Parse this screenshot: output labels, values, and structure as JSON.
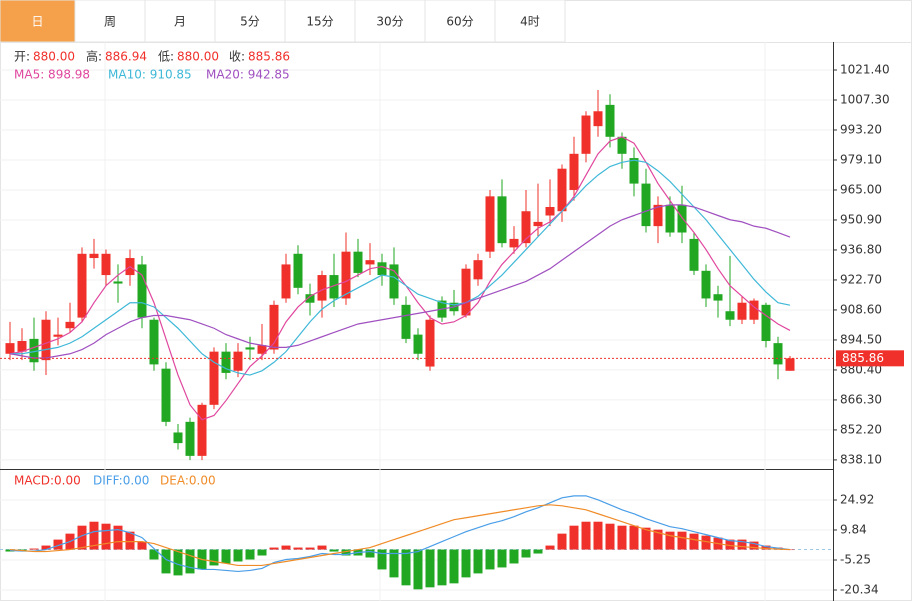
{
  "tabs": [
    "日",
    "周",
    "月",
    "5分",
    "15分",
    "30分",
    "60分",
    "4时"
  ],
  "active_tab": 0,
  "chart_data": [
    {
      "type": "candlestick",
      "header": [
        {
          "label": "开:",
          "text": "880.00"
        },
        {
          "label": "高:",
          "text": "886.94"
        },
        {
          "label": "低:",
          "text": "880.00"
        },
        {
          "label": "收:",
          "text": "885.86"
        }
      ],
      "up_color": "#f0302a",
      "down_color": "#22a722",
      "open": [
        888,
        889,
        895,
        885,
        896,
        900,
        905,
        933,
        925,
        922,
        925,
        930,
        904,
        881,
        851,
        856,
        840,
        864,
        889,
        880,
        891,
        888,
        890,
        914,
        935,
        916,
        913,
        925,
        914,
        936,
        930,
        931,
        930,
        911,
        897,
        882,
        913,
        912,
        906,
        923,
        936,
        962,
        938,
        940,
        948,
        953,
        955,
        965,
        982,
        995,
        1005,
        990,
        980,
        968,
        948,
        958,
        958,
        942,
        927,
        916,
        908,
        904,
        904,
        911,
        893,
        880
      ],
      "high": [
        903,
        900,
        905,
        908,
        905,
        912,
        938,
        942,
        937,
        930,
        937,
        934,
        905,
        884,
        855,
        858,
        865,
        891,
        893,
        893,
        896,
        902,
        913,
        935,
        939,
        921,
        927,
        935,
        945,
        942,
        940,
        935,
        938,
        915,
        900,
        906,
        915,
        918,
        930,
        935,
        965,
        970,
        948,
        965,
        968,
        970,
        977,
        990,
        1002,
        1012,
        1010,
        992,
        985,
        975,
        962,
        962,
        967,
        945,
        930,
        920,
        934,
        915,
        914,
        912,
        896,
        886.94
      ],
      "low": [
        885,
        885,
        880,
        878,
        892,
        898,
        903,
        928,
        920,
        912,
        920,
        900,
        880,
        854,
        843,
        838,
        838,
        862,
        876,
        877,
        885,
        885,
        888,
        912,
        916,
        906,
        905,
        910,
        911,
        924,
        925,
        920,
        911,
        893,
        885,
        880,
        903,
        906,
        905,
        920,
        933,
        938,
        935,
        938,
        943,
        948,
        950,
        960,
        978,
        990,
        985,
        975,
        962,
        945,
        940,
        943,
        940,
        925,
        910,
        905,
        901,
        902,
        902,
        891,
        876,
        880
      ],
      "close": [
        893,
        894,
        884,
        904,
        897,
        903,
        935,
        935,
        935,
        921,
        933,
        905,
        883,
        856,
        846,
        840,
        864,
        889,
        879,
        889,
        890,
        892,
        911,
        930,
        919,
        912,
        925,
        914,
        936,
        926,
        932,
        925,
        914,
        895,
        888,
        904,
        905,
        908,
        928,
        932,
        962,
        940,
        942,
        955,
        950,
        957,
        975,
        982,
        1000,
        1002,
        990,
        982,
        968,
        948,
        958,
        945,
        945,
        927,
        914,
        913,
        904,
        912,
        913,
        894,
        883,
        885.86
      ],
      "ma": [
        {
          "label": "MA5: 898.98",
          "color": "#e0479e",
          "values": [
            888,
            889,
            891,
            893,
            895,
            898,
            903,
            912,
            920,
            925,
            929,
            925,
            912,
            895,
            878,
            864,
            857,
            859,
            866,
            874,
            882,
            887,
            893,
            903,
            910,
            915,
            918,
            920,
            922,
            925,
            928,
            929,
            927,
            920,
            912,
            905,
            902,
            903,
            906,
            912,
            922,
            930,
            936,
            942,
            947,
            950,
            955,
            962,
            972,
            982,
            988,
            990,
            987,
            978,
            968,
            960,
            952,
            945,
            937,
            928,
            920,
            915,
            910,
            906,
            902,
            898.98
          ]
        },
        {
          "label": "MA10: 910.85",
          "color": "#3fb8d8",
          "values": [
            888,
            888,
            889,
            890,
            891,
            893,
            896,
            900,
            904,
            908,
            912,
            912,
            910,
            905,
            900,
            894,
            888,
            884,
            881,
            879,
            878,
            880,
            884,
            889,
            896,
            903,
            909,
            913,
            916,
            919,
            922,
            925,
            924,
            920,
            916,
            914,
            912,
            911,
            912,
            915,
            920,
            925,
            931,
            937,
            943,
            949,
            955,
            961,
            967,
            972,
            976,
            978,
            979,
            978,
            974,
            969,
            963,
            957,
            951,
            944,
            937,
            930,
            923,
            917,
            912,
            910.85
          ]
        },
        {
          "label": "MA20: 942.85",
          "color": "#a050c0",
          "values": [
            888,
            887,
            886,
            886,
            887,
            888,
            890,
            893,
            897,
            900,
            903,
            905,
            906,
            906,
            905,
            904,
            902,
            900,
            897,
            895,
            893,
            892,
            891,
            891,
            892,
            894,
            896,
            898,
            900,
            902,
            903,
            904,
            905,
            906,
            907,
            908,
            909,
            910,
            912,
            914,
            916,
            918,
            920,
            922,
            925,
            928,
            932,
            936,
            940,
            944,
            948,
            951,
            953,
            955,
            957,
            958,
            958,
            957,
            955,
            953,
            951,
            950,
            948,
            947,
            945,
            942.85
          ]
        }
      ],
      "ylim": [
        834.3,
        1034.56
      ],
      "yticks": [
        {
          "value": 1021.4,
          "label": "1021.40"
        },
        {
          "value": 1007.3,
          "label": "1007.30"
        },
        {
          "value": 993.2,
          "label": "993.20"
        },
        {
          "value": 979.1,
          "label": "979.10"
        },
        {
          "value": 965,
          "label": "965.00"
        },
        {
          "value": 950.9,
          "label": "950.90"
        },
        {
          "value": 936.8,
          "label": "936.80"
        },
        {
          "value": 922.7,
          "label": "922.70"
        },
        {
          "value": 908.6,
          "label": "908.60"
        },
        {
          "value": 894.5,
          "label": "894.50"
        },
        {
          "value": 880.4,
          "label": "880.40"
        },
        {
          "value": 866.3,
          "label": "866.30"
        },
        {
          "value": 852.2,
          "label": "852.20"
        },
        {
          "value": 838.1,
          "label": "838.10"
        }
      ],
      "last_price": {
        "value": 885.86,
        "label": "885.86"
      }
    },
    {
      "type": "macd",
      "legend": [
        {
          "text": "MACD:0.00",
          "color": "#f0302a"
        },
        {
          "text": "DIFF:0.00",
          "color": "#4a9ee8"
        },
        {
          "text": "DEA:0.00",
          "color": "#f08c28"
        }
      ],
      "up_color": "#f0302a",
      "down_color": "#22a722",
      "diff_color": "#4a9ee8",
      "dea_color": "#f08c28",
      "histogram": [
        -1,
        -0.5,
        0.5,
        2,
        5,
        8,
        12,
        14,
        13,
        12,
        9,
        4,
        -5,
        -12,
        -13,
        -12,
        -10,
        -8,
        -7,
        -6,
        -5,
        -3,
        1,
        2,
        1,
        1,
        2,
        -1,
        -3,
        -3,
        -4,
        -10,
        -14,
        -18,
        -20,
        -19,
        -18,
        -17,
        -14,
        -12,
        -10,
        -9,
        -7,
        -4,
        -2,
        2,
        8,
        12,
        14,
        14,
        13,
        12,
        12,
        11,
        10,
        9,
        9,
        8,
        7,
        6,
        5,
        5,
        4,
        2,
        1,
        0
      ],
      "diff": [
        -0.5,
        -0.75,
        -0.75,
        0,
        2,
        4,
        7,
        9,
        9.5,
        10,
        8.5,
        6,
        0.5,
        -5,
        -7.5,
        -9,
        -10,
        -10,
        -10.5,
        -11,
        -10.5,
        -9.5,
        -6.5,
        -5,
        -4.5,
        -3.5,
        -2,
        -2.5,
        -2.5,
        -1.5,
        -1,
        -2,
        -2,
        -2,
        -1,
        1.5,
        4,
        6.5,
        9,
        11,
        13,
        14.5,
        16.5,
        19,
        21,
        23.5,
        26,
        27,
        27,
        25,
        22.5,
        20,
        18,
        15.5,
        13.5,
        11.5,
        10.5,
        9,
        7.5,
        6,
        4.5,
        4,
        3,
        1.5,
        0.7,
        0
      ],
      "dea": [
        0,
        -0.5,
        -1,
        -1,
        -0.5,
        0,
        1,
        2,
        3,
        4,
        4,
        4,
        3,
        1,
        -1,
        -3,
        -5,
        -6,
        -7,
        -8,
        -8,
        -8,
        -7,
        -6,
        -5,
        -4,
        -3,
        -2,
        -1,
        0,
        1,
        3,
        5,
        7,
        9,
        11,
        13,
        15,
        16,
        17,
        18,
        19,
        20,
        21,
        22,
        22.5,
        22,
        21,
        20,
        18,
        16,
        14,
        12,
        10,
        8.5,
        7,
        6,
        5,
        4,
        3,
        2,
        1.5,
        1,
        0.5,
        0.2,
        0
      ],
      "ylim": [
        -25.37,
        40.0
      ],
      "yticks": [
        24.92,
        9.84,
        -5.25,
        -20.34
      ]
    }
  ]
}
